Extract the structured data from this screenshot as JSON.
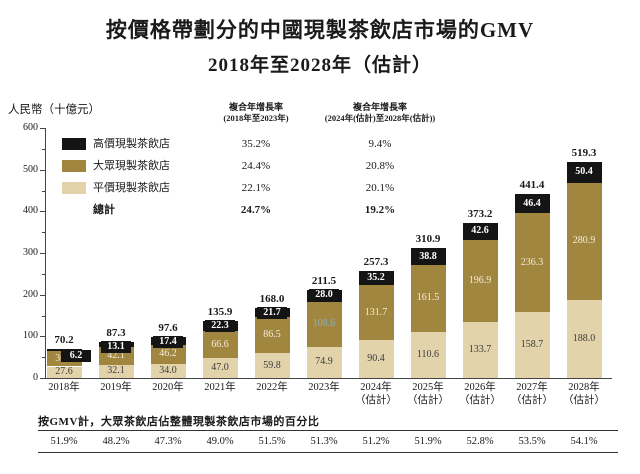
{
  "title": {
    "line1": "按價格帶劃分的中國現製茶飲店市場的GMV",
    "line2": "2018年至2028年（估計）"
  },
  "y_axis": {
    "unit_label": "人民幣（十億元）",
    "tick_values": [
      0,
      100,
      200,
      300,
      400,
      500,
      600
    ]
  },
  "legend": {
    "items": [
      {
        "label": "高價現製茶飲店",
        "color": "#141414",
        "bold": false
      },
      {
        "label": "大眾現製茶飲店",
        "color": "#a1863f",
        "bold": false
      },
      {
        "label": "平價現製茶飲店",
        "color": "#e2d3ab",
        "bold": false
      },
      {
        "label": "總計",
        "color": null,
        "bold": true
      }
    ]
  },
  "cagr_columns": [
    {
      "header_line1": "複合年增長率",
      "header_line2": "(2018年至2023年)",
      "values": [
        "35.2%",
        "24.4%",
        "22.1%",
        "24.7%"
      ],
      "bold_flags": [
        false,
        false,
        false,
        true
      ]
    },
    {
      "header_line1": "複合年增長率",
      "header_line2": "(2024年(估計)至2028年(估計))",
      "values": [
        "9.4%",
        "20.8%",
        "20.1%",
        "19.2%"
      ],
      "bold_flags": [
        false,
        false,
        false,
        true
      ]
    }
  ],
  "chart_data": {
    "type": "bar",
    "stacked": true,
    "title": "按價格帶劃分的中國現製茶飲店市場的GMV 2018年至2028年（估計）",
    "ylabel": "人民幣（十億元）",
    "ylim": [
      0,
      600
    ],
    "grid": false,
    "categories": [
      {
        "label": "2018年",
        "sublabel": ""
      },
      {
        "label": "2019年",
        "sublabel": ""
      },
      {
        "label": "2020年",
        "sublabel": ""
      },
      {
        "label": "2021年",
        "sublabel": ""
      },
      {
        "label": "2022年",
        "sublabel": ""
      },
      {
        "label": "2023年",
        "sublabel": ""
      },
      {
        "label": "2024年",
        "sublabel": "（估計）"
      },
      {
        "label": "2025年",
        "sublabel": "（估計）"
      },
      {
        "label": "2026年",
        "sublabel": "（估計）"
      },
      {
        "label": "2027年",
        "sublabel": "（估計）"
      },
      {
        "label": "2028年",
        "sublabel": "（估計）"
      }
    ],
    "series": [
      {
        "name": "平價現製茶飲店",
        "color": "#e2d3ab",
        "label_color": "#3c3c3c",
        "values": [
          27.6,
          32.1,
          34.0,
          47.0,
          59.8,
          74.9,
          90.4,
          110.6,
          133.7,
          158.7,
          188.0
        ]
      },
      {
        "name": "大眾現製茶飲店",
        "color": "#a1863f",
        "label_color": "#f4ecd8",
        "values": [
          36.4,
          42.1,
          46.2,
          66.6,
          86.5,
          108.6,
          131.7,
          161.5,
          196.9,
          236.3,
          280.9
        ]
      },
      {
        "name": "高價現製茶飲店",
        "color": "#141414",
        "label_color": "#ffffff",
        "values": [
          6.2,
          13.1,
          17.4,
          22.3,
          21.7,
          28.0,
          35.2,
          38.8,
          42.6,
          46.4,
          50.4
        ]
      }
    ],
    "totals": [
      70.2,
      87.3,
      97.6,
      135.9,
      168.0,
      211.5,
      257.3,
      310.9,
      373.2,
      441.4,
      519.3
    ],
    "highlight": {
      "series_index": 1,
      "category_index": 5,
      "color": "#85b2c6"
    },
    "legend_position": "upper-left"
  },
  "bottom": {
    "note": "按GMV計，大眾茶飲店佔整體現製茶飲店市場的百分比",
    "percentages": [
      "51.9%",
      "48.2%",
      "47.3%",
      "49.0%",
      "51.5%",
      "51.3%",
      "51.2%",
      "51.9%",
      "52.8%",
      "53.5%",
      "54.1%"
    ]
  }
}
